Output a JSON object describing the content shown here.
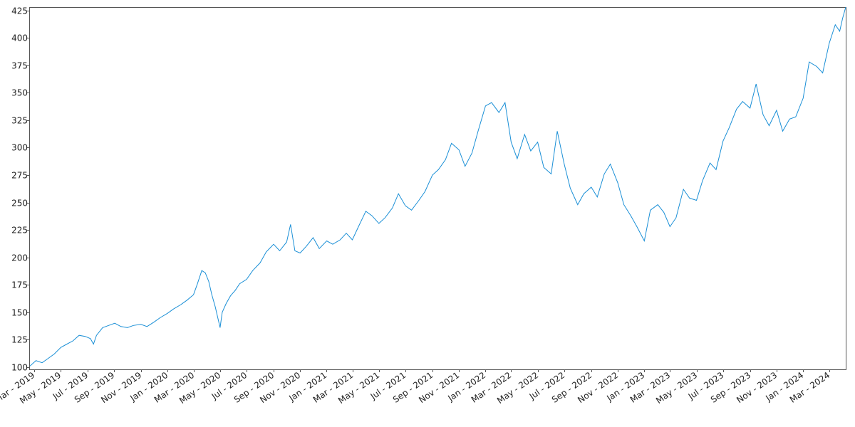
{
  "chart_data": {
    "type": "line",
    "title": "",
    "xlabel": "",
    "ylabel": "",
    "grid": false,
    "legend": "none",
    "line_color": "#1a8fd6",
    "x_range": [
      "2019-02-19",
      "2024-04-08"
    ],
    "ylim": [
      98,
      428
    ],
    "y_ticks": [
      {
        "value": 100,
        "label": "100"
      },
      {
        "value": 125,
        "label": "125"
      },
      {
        "value": 150,
        "label": "150"
      },
      {
        "value": 175,
        "label": "175"
      },
      {
        "value": 200,
        "label": "200"
      },
      {
        "value": 225,
        "label": "225"
      },
      {
        "value": 250,
        "label": "250"
      },
      {
        "value": 275,
        "label": "275"
      },
      {
        "value": 300,
        "label": "300"
      },
      {
        "value": 325,
        "label": "325"
      },
      {
        "value": 350,
        "label": "350"
      },
      {
        "value": 375,
        "label": "375"
      },
      {
        "value": 400,
        "label": "400"
      },
      {
        "value": 425,
        "label": "425"
      }
    ],
    "x_ticks": [
      {
        "date": "2019-03-01",
        "label": "Mar - 2019"
      },
      {
        "date": "2019-05-01",
        "label": "May - 2019"
      },
      {
        "date": "2019-07-01",
        "label": "Jul - 2019"
      },
      {
        "date": "2019-09-01",
        "label": "Sep - 2019"
      },
      {
        "date": "2019-11-01",
        "label": "Nov - 2019"
      },
      {
        "date": "2020-01-01",
        "label": "Jan - 2020"
      },
      {
        "date": "2020-03-01",
        "label": "Mar - 2020"
      },
      {
        "date": "2020-05-01",
        "label": "May - 2020"
      },
      {
        "date": "2020-07-01",
        "label": "Jul - 2020"
      },
      {
        "date": "2020-09-01",
        "label": "Sep - 2020"
      },
      {
        "date": "2020-11-01",
        "label": "Nov - 2020"
      },
      {
        "date": "2021-01-01",
        "label": "Jan - 2021"
      },
      {
        "date": "2021-03-01",
        "label": "Mar - 2021"
      },
      {
        "date": "2021-05-01",
        "label": "May - 2021"
      },
      {
        "date": "2021-07-01",
        "label": "Jul - 2021"
      },
      {
        "date": "2021-09-01",
        "label": "Sep - 2021"
      },
      {
        "date": "2021-11-01",
        "label": "Nov - 2021"
      },
      {
        "date": "2022-01-01",
        "label": "Jan - 2022"
      },
      {
        "date": "2022-03-01",
        "label": "Mar - 2022"
      },
      {
        "date": "2022-05-01",
        "label": "May - 2022"
      },
      {
        "date": "2022-07-01",
        "label": "Jul - 2022"
      },
      {
        "date": "2022-09-01",
        "label": "Sep - 2022"
      },
      {
        "date": "2022-11-01",
        "label": "Nov - 2022"
      },
      {
        "date": "2023-01-01",
        "label": "Jan - 2023"
      },
      {
        "date": "2023-03-01",
        "label": "Mar - 2023"
      },
      {
        "date": "2023-05-01",
        "label": "May - 2023"
      },
      {
        "date": "2023-07-01",
        "label": "Jul - 2023"
      },
      {
        "date": "2023-09-01",
        "label": "Sep - 2023"
      },
      {
        "date": "2023-11-01",
        "label": "Nov - 2023"
      },
      {
        "date": "2024-01-01",
        "label": "Jan - 2024"
      },
      {
        "date": "2024-03-01",
        "label": "Mar - 2024"
      }
    ],
    "series": [
      {
        "points": [
          [
            "2019-02-19",
            101
          ],
          [
            "2019-03-05",
            106
          ],
          [
            "2019-03-19",
            104
          ],
          [
            "2019-04-02",
            108
          ],
          [
            "2019-04-16",
            112
          ],
          [
            "2019-05-01",
            118
          ],
          [
            "2019-05-15",
            121
          ],
          [
            "2019-05-29",
            124
          ],
          [
            "2019-06-12",
            129
          ],
          [
            "2019-06-26",
            128
          ],
          [
            "2019-07-08",
            126
          ],
          [
            "2019-07-15",
            121
          ],
          [
            "2019-07-22",
            129
          ],
          [
            "2019-08-05",
            136
          ],
          [
            "2019-08-19",
            138
          ],
          [
            "2019-09-02",
            140
          ],
          [
            "2019-09-16",
            137
          ],
          [
            "2019-10-01",
            136
          ],
          [
            "2019-10-15",
            138
          ],
          [
            "2019-11-01",
            139
          ],
          [
            "2019-11-15",
            137
          ],
          [
            "2019-12-01",
            141
          ],
          [
            "2019-12-15",
            145
          ],
          [
            "2020-01-01",
            149
          ],
          [
            "2020-01-15",
            153
          ],
          [
            "2020-02-01",
            157
          ],
          [
            "2020-02-15",
            161
          ],
          [
            "2020-03-01",
            166
          ],
          [
            "2020-03-10",
            176
          ],
          [
            "2020-03-20",
            188
          ],
          [
            "2020-03-28",
            186
          ],
          [
            "2020-04-05",
            178
          ],
          [
            "2020-04-12",
            166
          ],
          [
            "2020-04-20",
            155
          ],
          [
            "2020-04-27",
            143
          ],
          [
            "2020-05-01",
            136
          ],
          [
            "2020-05-06",
            150
          ],
          [
            "2020-05-15",
            158
          ],
          [
            "2020-05-25",
            165
          ],
          [
            "2020-06-05",
            170
          ],
          [
            "2020-06-15",
            176
          ],
          [
            "2020-07-01",
            180
          ],
          [
            "2020-07-15",
            188
          ],
          [
            "2020-08-01",
            195
          ],
          [
            "2020-08-15",
            205
          ],
          [
            "2020-09-01",
            212
          ],
          [
            "2020-09-15",
            206
          ],
          [
            "2020-10-01",
            214
          ],
          [
            "2020-10-10",
            230
          ],
          [
            "2020-10-20",
            206
          ],
          [
            "2020-11-01",
            204
          ],
          [
            "2020-11-15",
            210
          ],
          [
            "2020-12-01",
            218
          ],
          [
            "2020-12-15",
            208
          ],
          [
            "2021-01-01",
            215
          ],
          [
            "2021-01-15",
            212
          ],
          [
            "2021-02-01",
            216
          ],
          [
            "2021-02-15",
            222
          ],
          [
            "2021-03-01",
            216
          ],
          [
            "2021-03-15",
            228
          ],
          [
            "2021-04-01",
            242
          ],
          [
            "2021-04-15",
            238
          ],
          [
            "2021-05-01",
            231
          ],
          [
            "2021-05-15",
            236
          ],
          [
            "2021-06-01",
            245
          ],
          [
            "2021-06-15",
            258
          ],
          [
            "2021-07-01",
            247
          ],
          [
            "2021-07-15",
            243
          ],
          [
            "2021-08-01",
            252
          ],
          [
            "2021-08-15",
            260
          ],
          [
            "2021-09-01",
            275
          ],
          [
            "2021-09-15",
            280
          ],
          [
            "2021-10-01",
            289
          ],
          [
            "2021-10-15",
            304
          ],
          [
            "2021-11-01",
            298
          ],
          [
            "2021-11-15",
            283
          ],
          [
            "2021-12-01",
            295
          ],
          [
            "2021-12-15",
            315
          ],
          [
            "2022-01-01",
            338
          ],
          [
            "2022-01-15",
            341
          ],
          [
            "2022-02-01",
            332
          ],
          [
            "2022-02-15",
            341
          ],
          [
            "2022-03-01",
            305
          ],
          [
            "2022-03-15",
            290
          ],
          [
            "2022-04-01",
            312
          ],
          [
            "2022-04-15",
            297
          ],
          [
            "2022-05-01",
            305
          ],
          [
            "2022-05-15",
            282
          ],
          [
            "2022-06-01",
            276
          ],
          [
            "2022-06-15",
            315
          ],
          [
            "2022-07-01",
            285
          ],
          [
            "2022-07-15",
            263
          ],
          [
            "2022-08-01",
            248
          ],
          [
            "2022-08-15",
            258
          ],
          [
            "2022-09-01",
            264
          ],
          [
            "2022-09-15",
            255
          ],
          [
            "2022-10-01",
            276
          ],
          [
            "2022-10-15",
            285
          ],
          [
            "2022-11-01",
            268
          ],
          [
            "2022-11-15",
            248
          ],
          [
            "2022-12-01",
            238
          ],
          [
            "2022-12-15",
            228
          ],
          [
            "2023-01-01",
            215
          ],
          [
            "2023-01-15",
            243
          ],
          [
            "2023-02-01",
            248
          ],
          [
            "2023-02-15",
            241
          ],
          [
            "2023-03-01",
            228
          ],
          [
            "2023-03-15",
            236
          ],
          [
            "2023-04-01",
            262
          ],
          [
            "2023-04-15",
            254
          ],
          [
            "2023-05-01",
            252
          ],
          [
            "2023-05-15",
            270
          ],
          [
            "2023-06-01",
            286
          ],
          [
            "2023-06-15",
            280
          ],
          [
            "2023-07-01",
            306
          ],
          [
            "2023-07-15",
            318
          ],
          [
            "2023-08-01",
            335
          ],
          [
            "2023-08-15",
            342
          ],
          [
            "2023-09-01",
            336
          ],
          [
            "2023-09-15",
            358
          ],
          [
            "2023-10-01",
            330
          ],
          [
            "2023-10-15",
            320
          ],
          [
            "2023-11-01",
            334
          ],
          [
            "2023-11-15",
            315
          ],
          [
            "2023-12-01",
            326
          ],
          [
            "2023-12-15",
            328
          ],
          [
            "2024-01-01",
            345
          ],
          [
            "2024-01-15",
            378
          ],
          [
            "2024-02-01",
            374
          ],
          [
            "2024-02-15",
            368
          ],
          [
            "2024-03-01",
            395
          ],
          [
            "2024-03-15",
            412
          ],
          [
            "2024-03-25",
            406
          ],
          [
            "2024-04-01",
            418
          ],
          [
            "2024-04-08",
            428
          ]
        ]
      }
    ]
  }
}
